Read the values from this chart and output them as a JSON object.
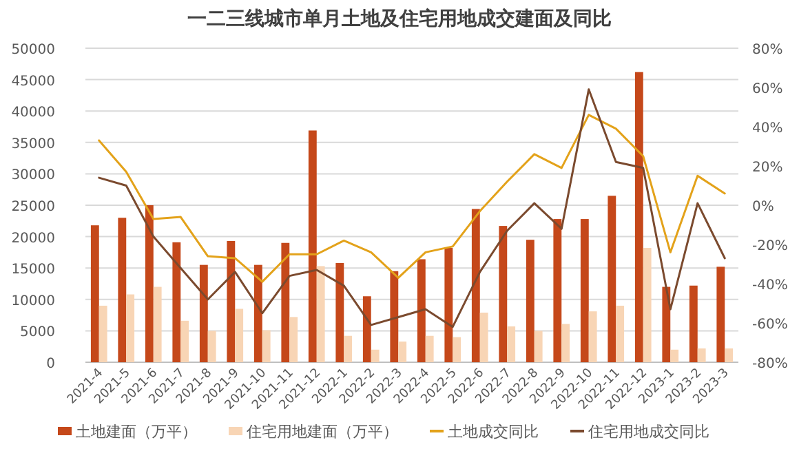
{
  "chart_data": {
    "type": "bar",
    "title": "一二三线城市单月土地及住宅用地成交建面及同比",
    "categories": [
      "2021-4",
      "2021-5",
      "2021-6",
      "2021-7",
      "2021-8",
      "2021-9",
      "2021-10",
      "2021-11",
      "2021-12",
      "2022-1",
      "2022-2",
      "2022-3",
      "2022-4",
      "2022-5",
      "2022-6",
      "2022-7",
      "2022-8",
      "2022-9",
      "2022-10",
      "2022-11",
      "2022-12",
      "2023-1",
      "2023-2",
      "2023-3"
    ],
    "series": [
      {
        "name": "土地建面（万平）",
        "type": "bar",
        "color": "#c5481a",
        "values": [
          21800,
          23000,
          25000,
          19100,
          15500,
          19300,
          15500,
          19000,
          36900,
          15800,
          10500,
          14500,
          16400,
          18200,
          24400,
          21700,
          19500,
          22800,
          22800,
          26500,
          46200,
          12000,
          12200,
          15200
        ]
      },
      {
        "name": "住宅用地建面（万平）",
        "type": "bar",
        "color": "#f8d5b5",
        "values": [
          9000,
          10800,
          12000,
          6600,
          5000,
          8500,
          5100,
          7200,
          15300,
          4200,
          2000,
          3300,
          4200,
          4000,
          7900,
          5700,
          5000,
          6100,
          8100,
          9000,
          18200,
          2000,
          2200,
          2200
        ]
      },
      {
        "name": "土地成交同比",
        "type": "line",
        "axis": "y2",
        "color": "#e3a21a",
        "values": [
          33,
          17,
          -7,
          -6,
          -26,
          -27,
          -39,
          -25,
          -25,
          -18,
          -24,
          -37,
          -24,
          -21,
          -3,
          12,
          26,
          19,
          46,
          39,
          25,
          -24,
          15,
          6
        ]
      },
      {
        "name": "住宅用地成交同比",
        "type": "line",
        "axis": "y2",
        "color": "#7b4a2e",
        "values": [
          14,
          10,
          -16,
          -32,
          -48,
          -34,
          -55,
          -36,
          -33,
          -41,
          -61,
          -57,
          -53,
          -62,
          -34,
          -13,
          1,
          -12,
          59,
          22,
          19,
          -53,
          1,
          -27
        ]
      }
    ],
    "ylim": [
      0,
      50000
    ],
    "yticks": [
      0,
      5000,
      10000,
      15000,
      20000,
      25000,
      30000,
      35000,
      40000,
      45000,
      50000
    ],
    "y2lim": [
      -80,
      80
    ],
    "y2ticks": [
      {
        "value": -80,
        "label": "-80%"
      },
      {
        "value": -60,
        "label": "-60%"
      },
      {
        "value": -40,
        "label": "-40%"
      },
      {
        "value": -20,
        "label": "-20%"
      },
      {
        "value": 0,
        "label": "0%"
      },
      {
        "value": 20,
        "label": "20%"
      },
      {
        "value": 40,
        "label": "40%"
      },
      {
        "value": 60,
        "label": "60%"
      },
      {
        "value": 80,
        "label": "80%"
      }
    ],
    "grid": "y",
    "legend": "bottom",
    "marker": "none",
    "line_style": "solid"
  }
}
